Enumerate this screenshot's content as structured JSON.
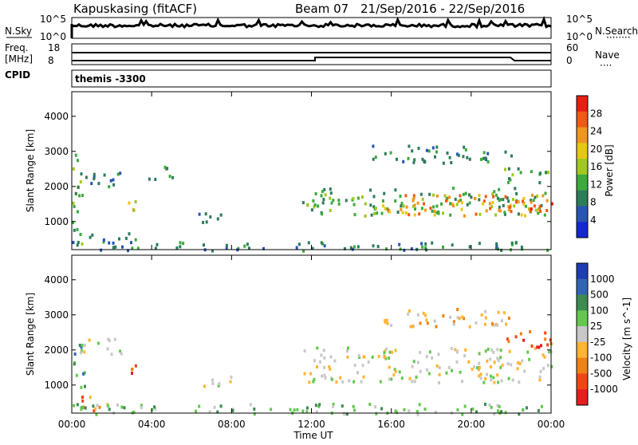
{
  "header": {
    "station": "Kapuskasing (fitACF)",
    "beam": "Beam 07",
    "date_range": "21/Sep/2016 - 22/Sep/2016"
  },
  "noise_panel": {
    "left_label": "N.Sky",
    "right_label": "N.Search",
    "left_ticks": [
      "10^5",
      "10^0"
    ],
    "right_ticks": [
      "10^5",
      "10^0"
    ]
  },
  "freq_panel": {
    "left_label_line1": "Freq.",
    "left_label_line2": "[MHz]",
    "left_ticks": [
      "18",
      "8"
    ],
    "right_label": "Nave",
    "right_ticks": [
      "60",
      "0"
    ]
  },
  "cpid_panel": {
    "label": "CPID",
    "program": "themis -3300"
  },
  "colors": {
    "power_scale": [
      "#1428d2",
      "#2855b4",
      "#2d7d5a",
      "#3caa3c",
      "#a0c81e",
      "#e6c814",
      "#f0961e",
      "#f05a14",
      "#e61e14"
    ],
    "velocity_scale": [
      "#1e3cb4",
      "#3264b4",
      "#3c8c50",
      "#64c850",
      "#c8c8c8",
      "#ffb432",
      "#f08214",
      "#f04614",
      "#e61e1e"
    ],
    "grey_scatter": "#c8c8c8"
  },
  "chart_data": [
    {
      "type": "heatmap",
      "title": "",
      "quantity": "Power",
      "xlabel": "Time UT",
      "ylabel": "Slant Range [km]",
      "x_ticks": [
        "00:00",
        "04:00",
        "08:00",
        "12:00",
        "16:00",
        "20:00",
        "00:00"
      ],
      "xlim_hours": [
        0,
        24
      ],
      "ylim": [
        200,
        4700
      ],
      "y_ticks": [
        1000,
        2000,
        3000,
        4000
      ],
      "colorbar_label": "Power [dB]",
      "colorbar_range": [
        0,
        32
      ],
      "colorbar_ticks": [
        4,
        8,
        12,
        16,
        20,
        24,
        28
      ],
      "regions": [
        {
          "t0": 0.0,
          "t1": 0.5,
          "r0": 300,
          "r1": 3200,
          "level": 12
        },
        {
          "t0": 0.2,
          "t1": 2.5,
          "r0": 2000,
          "r1": 2500,
          "level": 6
        },
        {
          "t0": 0.8,
          "t1": 3.2,
          "r0": 400,
          "r1": 700,
          "level": 6
        },
        {
          "t0": 2.8,
          "t1": 3.2,
          "r0": 1300,
          "r1": 1700,
          "level": 18
        },
        {
          "t0": 3.5,
          "t1": 5.0,
          "r0": 2200,
          "r1": 2600,
          "level": 6
        },
        {
          "t0": 6.0,
          "t1": 8.0,
          "r0": 1000,
          "r1": 1300,
          "level": 8
        },
        {
          "t0": 0.0,
          "t1": 24.0,
          "r0": 200,
          "r1": 450,
          "level": 6
        },
        {
          "t0": 11.5,
          "t1": 24.0,
          "r0": 1200,
          "r1": 2000,
          "level": 12
        },
        {
          "t0": 15.5,
          "t1": 24.0,
          "r0": 1200,
          "r1": 1800,
          "level": 22
        },
        {
          "t0": 20.5,
          "t1": 24.0,
          "r0": 1300,
          "r1": 1600,
          "level": 28
        },
        {
          "t0": 15.0,
          "t1": 22.0,
          "r0": 2700,
          "r1": 3200,
          "level": 7
        },
        {
          "t0": 21.5,
          "t1": 24.0,
          "r0": 2100,
          "r1": 2600,
          "level": 12
        }
      ]
    },
    {
      "type": "heatmap",
      "title": "",
      "quantity": "Velocity",
      "xlabel": "Time UT",
      "ylabel": "Slant Range [km]",
      "x_ticks": [
        "00:00",
        "04:00",
        "08:00",
        "12:00",
        "16:00",
        "20:00",
        "00:00"
      ],
      "xlim_hours": [
        0,
        24
      ],
      "ylim": [
        200,
        4700
      ],
      "y_ticks": [
        1000,
        2000,
        3000,
        4000
      ],
      "colorbar_label": "Velocity [m s^-1]",
      "colorbar_ticks": [
        "1000",
        "500",
        "100",
        "25",
        "-25",
        "-100",
        "-500",
        "-1000"
      ],
      "regions": [
        {
          "t0": 0.0,
          "t1": 0.6,
          "r0": 300,
          "r1": 2200,
          "level": 2
        },
        {
          "t0": 0.3,
          "t1": 2.5,
          "r0": 1900,
          "r1": 2400,
          "level": 4
        },
        {
          "t0": 0.3,
          "t1": 2.0,
          "r0": 300,
          "r1": 700,
          "level": 6
        },
        {
          "t0": 2.8,
          "t1": 3.2,
          "r0": 1300,
          "r1": 1600,
          "level": 7
        },
        {
          "t0": 6.0,
          "t1": 8.0,
          "r0": 1000,
          "r1": 1300,
          "level": 4
        },
        {
          "t0": 0.0,
          "t1": 24.0,
          "r0": 200,
          "r1": 500,
          "level": 3
        },
        {
          "t0": 11.5,
          "t1": 24.0,
          "r0": 1100,
          "r1": 2100,
          "level": 4
        },
        {
          "t0": 15.0,
          "t1": 22.0,
          "r0": 2700,
          "r1": 3200,
          "level": 5
        },
        {
          "t0": 21.5,
          "t1": 24.0,
          "r0": 2100,
          "r1": 2600,
          "level": 7
        }
      ]
    }
  ]
}
